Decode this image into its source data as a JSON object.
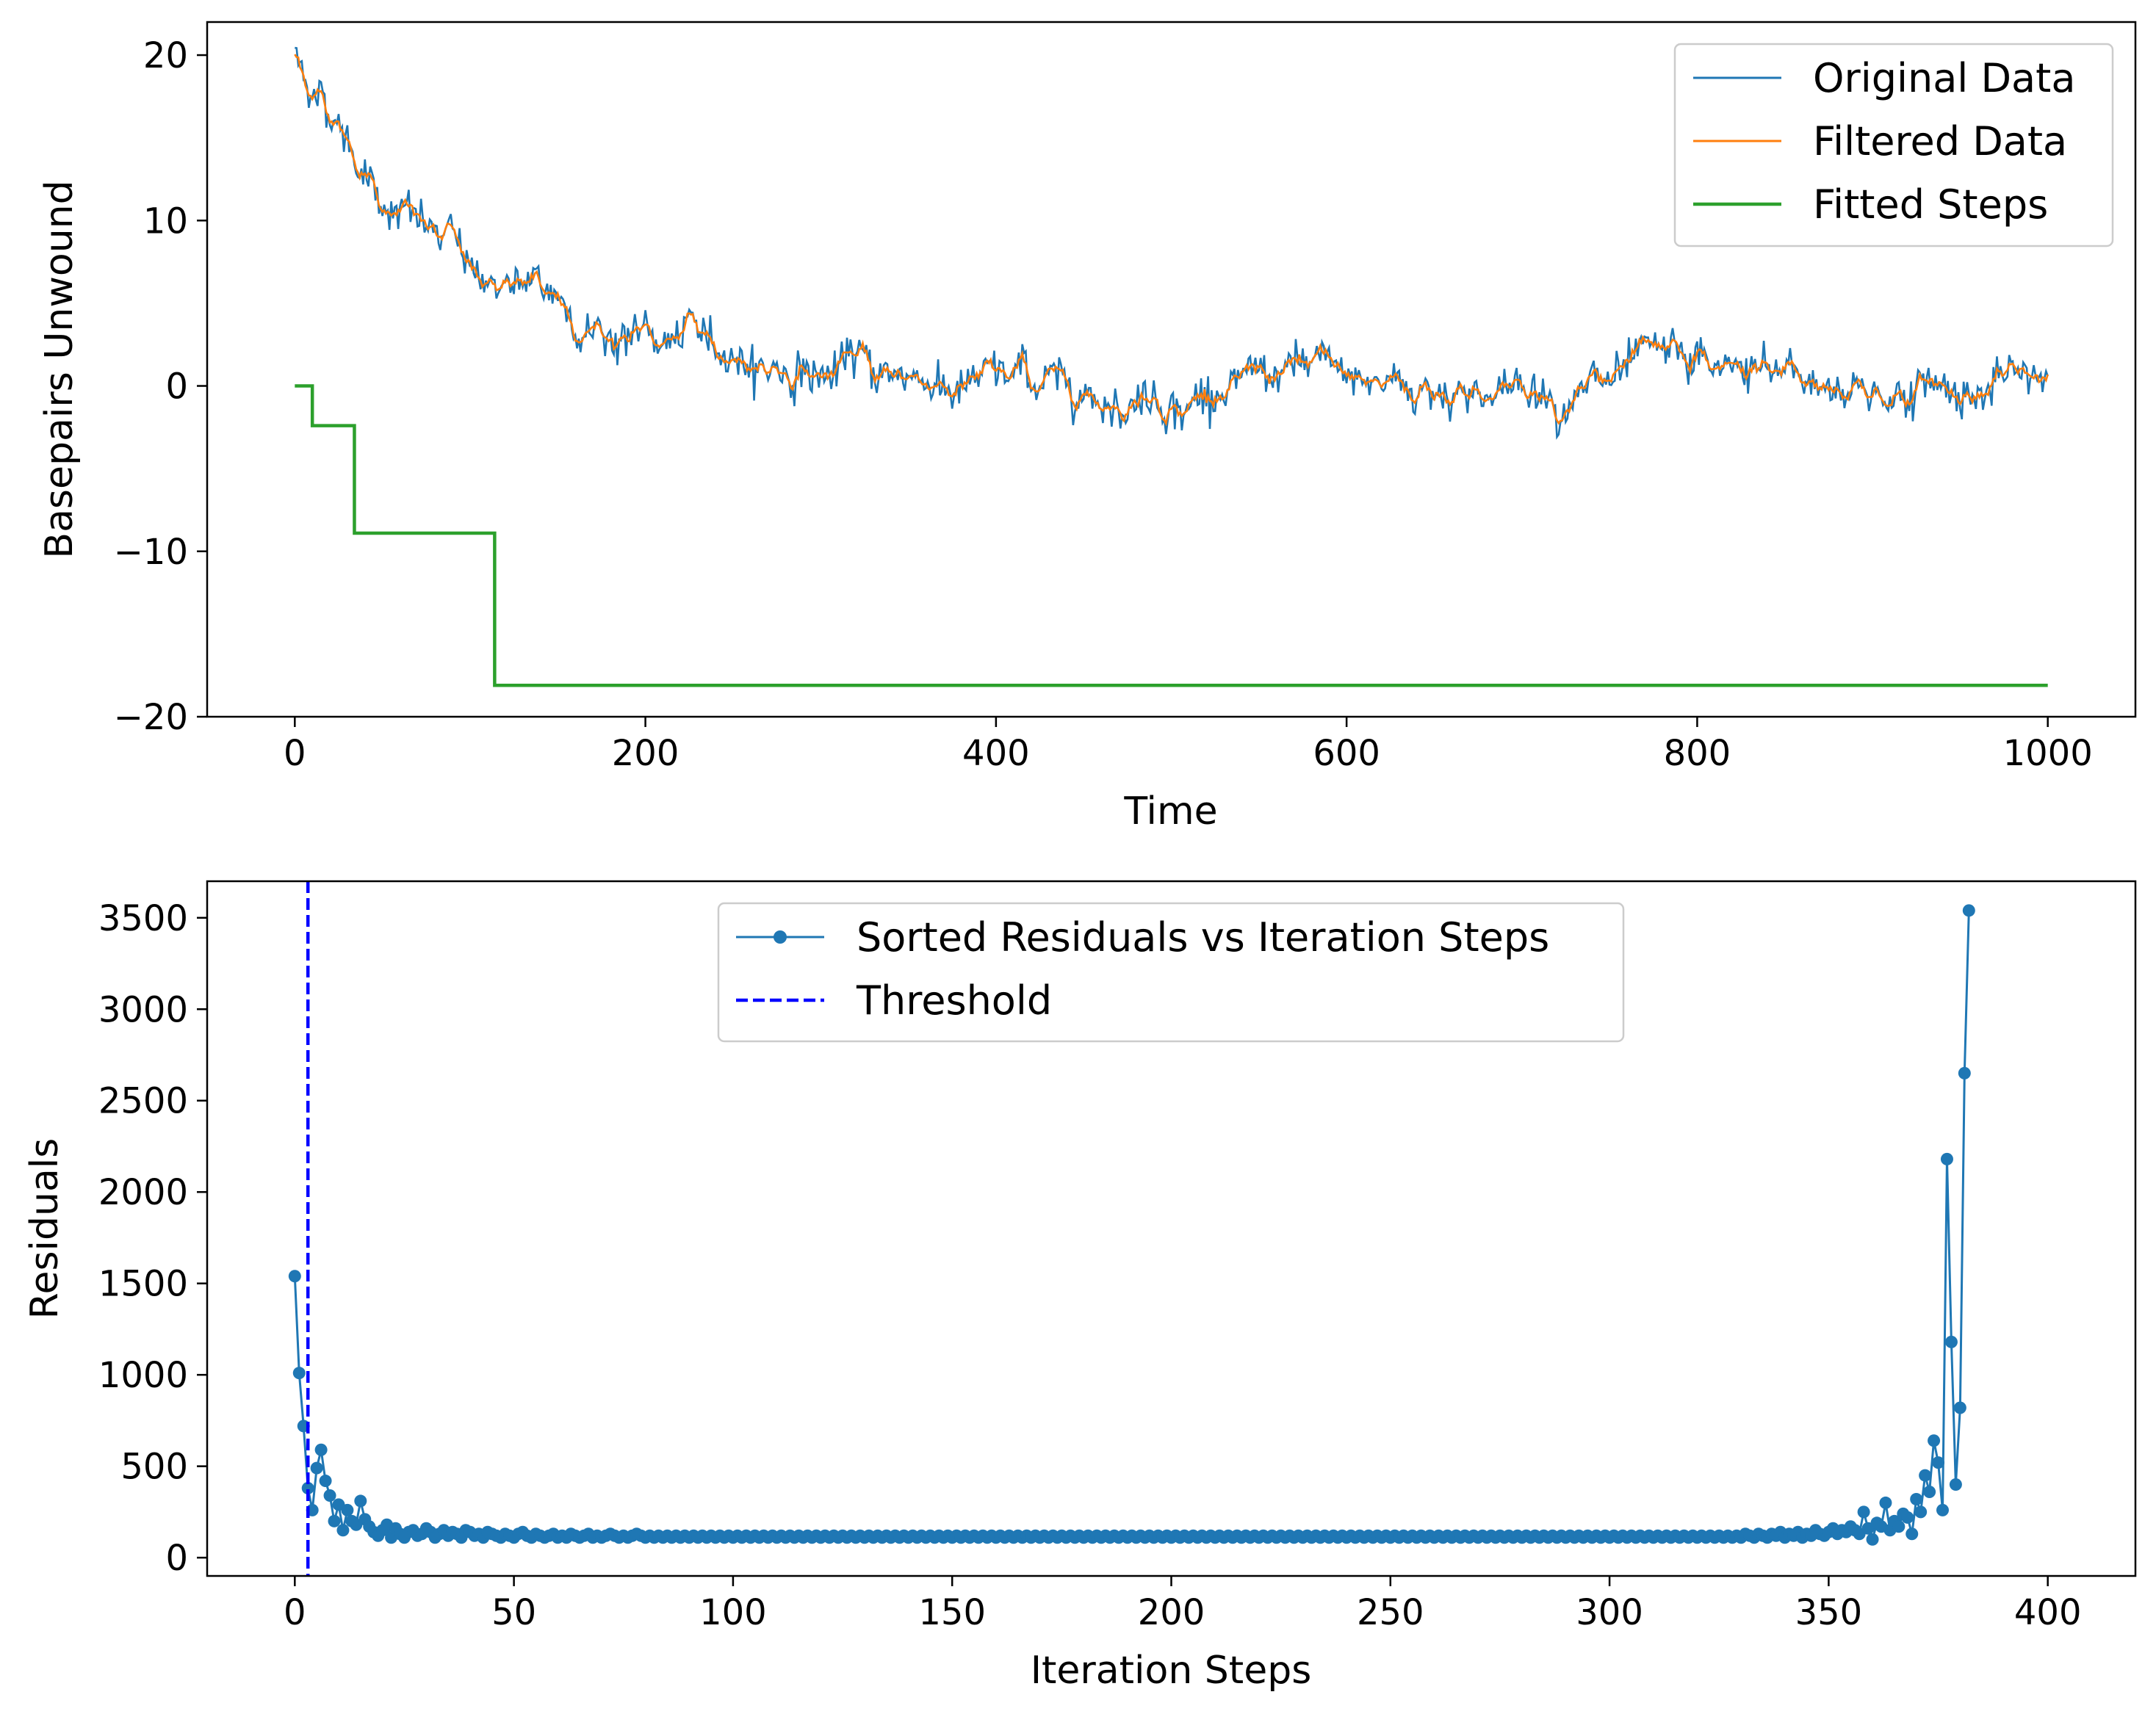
{
  "chart_data": [
    {
      "type": "line",
      "xlabel": "Time",
      "ylabel": "Basepairs Unwound",
      "xlim": [
        -50,
        1050
      ],
      "ylim": [
        -20,
        22
      ],
      "xticks": [
        0,
        200,
        400,
        600,
        800,
        1000
      ],
      "yticks": [
        -20,
        -10,
        0,
        10,
        20
      ],
      "ytick_labels": [
        "−20",
        "−10",
        "0",
        "10",
        "20"
      ],
      "legend_position": "upper right",
      "grid": false,
      "series": [
        {
          "name": "Original Data",
          "color": "#1f77b4",
          "description_points": [
            [
              0,
              20
            ],
            [
              50,
              12.2
            ],
            [
              100,
              7.2
            ],
            [
              150,
              4.5
            ],
            [
              200,
              2.8
            ],
            [
              250,
              1.8
            ],
            [
              300,
              1.1
            ],
            [
              350,
              0.6
            ],
            [
              400,
              0.3
            ],
            [
              500,
              0.1
            ],
            [
              600,
              0.0
            ],
            [
              700,
              0.0
            ],
            [
              800,
              0.0
            ],
            [
              900,
              0.0
            ],
            [
              1000,
              0.0
            ]
          ]
        },
        {
          "name": "Filtered Data",
          "color": "#ff7f0e",
          "description_points": [
            [
              0,
              20
            ],
            [
              50,
              12.2
            ],
            [
              100,
              7.2
            ],
            [
              150,
              4.5
            ],
            [
              200,
              2.8
            ],
            [
              250,
              1.8
            ],
            [
              300,
              1.1
            ],
            [
              350,
              0.6
            ],
            [
              400,
              0.3
            ],
            [
              500,
              0.1
            ],
            [
              600,
              0.0
            ],
            [
              700,
              0.0
            ],
            [
              800,
              0.0
            ],
            [
              900,
              0.0
            ],
            [
              1000,
              0.0
            ]
          ]
        },
        {
          "name": "Fitted Steps",
          "color": "#2ca02c",
          "x": [
            0,
            10,
            10,
            34,
            34,
            114,
            114,
            1000
          ],
          "y": [
            0,
            0,
            -2.4,
            -2.4,
            -8.9,
            -8.9,
            -18.1,
            -18.1
          ]
        }
      ]
    },
    {
      "type": "line",
      "xlabel": "Iteration Steps",
      "ylabel": "Residuals",
      "xlim": [
        -20,
        420
      ],
      "ylim": [
        -100,
        3700
      ],
      "xticks": [
        0,
        50,
        100,
        150,
        200,
        250,
        300,
        350,
        400
      ],
      "yticks": [
        0,
        500,
        1000,
        1500,
        2000,
        2500,
        3000,
        3500
      ],
      "legend_position": "upper center",
      "grid": false,
      "series": [
        {
          "name": "Sorted Residuals vs Iteration Steps",
          "color": "#1f77b4",
          "marker": "circle",
          "x_start": 0,
          "x_step": 1,
          "values": [
            1540,
            1010,
            720,
            380,
            260,
            490,
            590,
            420,
            340,
            200,
            290,
            150,
            260,
            200,
            180,
            310,
            210,
            170,
            140,
            120,
            150,
            180,
            110,
            160,
            130,
            110,
            140,
            150,
            120,
            130,
            160,
            140,
            110,
            130,
            150,
            120,
            140,
            130,
            110,
            150,
            140,
            120,
            130,
            110,
            140,
            130,
            120,
            110,
            130,
            120,
            110,
            130,
            140,
            120,
            110,
            130,
            120,
            110,
            120,
            130,
            110,
            120,
            110,
            130,
            120,
            110,
            120,
            130,
            110,
            120,
            110,
            120,
            130,
            120,
            110,
            120,
            110,
            120,
            130,
            120,
            110,
            120,
            110,
            120,
            110,
            120,
            110,
            120,
            110,
            120,
            110,
            120,
            110,
            120,
            110,
            120,
            110,
            120,
            110,
            120,
            110,
            120,
            110,
            120,
            110,
            120,
            110,
            120,
            110,
            120,
            110,
            120,
            110,
            120,
            110,
            120,
            110,
            120,
            110,
            120,
            110,
            120,
            110,
            120,
            110,
            120,
            110,
            120,
            110,
            120,
            110,
            120,
            110,
            120,
            110,
            120,
            110,
            120,
            110,
            120,
            110,
            120,
            110,
            120,
            110,
            120,
            110,
            120,
            110,
            120,
            110,
            120,
            110,
            120,
            110,
            120,
            110,
            120,
            110,
            120,
            110,
            120,
            110,
            120,
            110,
            120,
            110,
            120,
            110,
            120,
            110,
            120,
            110,
            120,
            110,
            120,
            110,
            120,
            110,
            120,
            110,
            120,
            110,
            120,
            110,
            120,
            110,
            120,
            110,
            120,
            110,
            120,
            110,
            120,
            110,
            120,
            110,
            120,
            110,
            120,
            110,
            120,
            110,
            120,
            110,
            120,
            110,
            120,
            110,
            120,
            110,
            120,
            110,
            120,
            110,
            120,
            110,
            120,
            110,
            120,
            110,
            120,
            110,
            120,
            110,
            120,
            110,
            120,
            110,
            120,
            110,
            120,
            110,
            120,
            110,
            120,
            110,
            120,
            110,
            120,
            110,
            120,
            110,
            120,
            110,
            120,
            110,
            120,
            110,
            120,
            110,
            120,
            110,
            120,
            110,
            120,
            110,
            120,
            110,
            120,
            110,
            120,
            110,
            120,
            110,
            120,
            110,
            120,
            110,
            120,
            110,
            120,
            110,
            120,
            110,
            120,
            110,
            120,
            110,
            120,
            110,
            120,
            110,
            120,
            110,
            120,
            110,
            120,
            110,
            120,
            110,
            120,
            110,
            120,
            110,
            120,
            110,
            120,
            110,
            120,
            110,
            120,
            110,
            120,
            110,
            120,
            110,
            120,
            110,
            120,
            110,
            120,
            110,
            120,
            110,
            120,
            110,
            120,
            110,
            120,
            110,
            120,
            110,
            120,
            110,
            120,
            110,
            120,
            110,
            120,
            110,
            130,
            120,
            110,
            130,
            120,
            110,
            130,
            120,
            140,
            110,
            130,
            120,
            140,
            110,
            130,
            120,
            150,
            130,
            120,
            140,
            160,
            130,
            150,
            140,
            170,
            150,
            130,
            250,
            160,
            100,
            190,
            170,
            300,
            150,
            200,
            170,
            240,
            220,
            130,
            320,
            250,
            450,
            360,
            640,
            520,
            260,
            2180,
            1180,
            400,
            820,
            2650,
            3540
          ]
        },
        {
          "name": "Threshold",
          "color": "#0000ff",
          "style": "dashed",
          "x": 3
        }
      ]
    }
  ]
}
